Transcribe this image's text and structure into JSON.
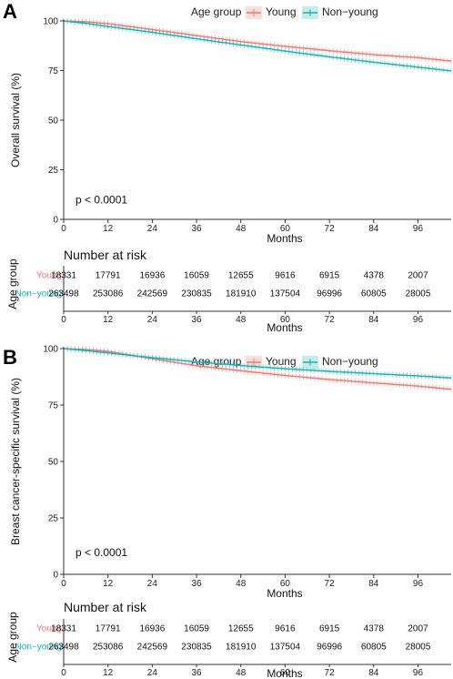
{
  "colors": {
    "young": "#F8766D",
    "nonyoung": "#17B3B7",
    "axis": "#333333"
  },
  "risk_table": {
    "title": "Number at risk",
    "ylabel": "Age group",
    "xlabel": "Months",
    "times": [
      "0",
      "12",
      "24",
      "36",
      "48",
      "60",
      "72",
      "84",
      "96"
    ],
    "rows": [
      {
        "label": "Young",
        "color": "#F8766D",
        "values": [
          "18331",
          "17791",
          "16936",
          "16059",
          "12655",
          "9616",
          "6915",
          "4378",
          "2007"
        ]
      },
      {
        "label": "Non−young",
        "color": "#17B3B7",
        "values": [
          "263498",
          "253086",
          "242569",
          "230835",
          "181910",
          "137504",
          "96996",
          "60805",
          "28005"
        ]
      }
    ]
  },
  "chart_data": [
    {
      "type": "line",
      "panel": "A",
      "title": "",
      "xlabel": "Months",
      "ylabel": "Overall survival (%)",
      "xlim": [
        0,
        105
      ],
      "ylim": [
        0,
        100
      ],
      "xticks": [
        "0",
        "12",
        "24",
        "36",
        "48",
        "60",
        "72",
        "84",
        "96"
      ],
      "yticks": [
        "0",
        "25",
        "50",
        "75",
        "100"
      ],
      "legend_title": "Age group",
      "legend_position": "top",
      "annotation": "p < 0.0001",
      "x": [
        0,
        6,
        12,
        24,
        36,
        48,
        60,
        72,
        84,
        96,
        105
      ],
      "series": [
        {
          "name": "Young",
          "color": "#F8766D",
          "values": [
            100,
            99.6,
            98.6,
            95.7,
            92.6,
            89.6,
            87.2,
            85.0,
            83.0,
            81.5,
            79.8
          ]
        },
        {
          "name": "Non−young",
          "color": "#17B3B7",
          "values": [
            100,
            98.8,
            97.2,
            94.3,
            91.0,
            87.9,
            84.8,
            81.9,
            79.2,
            76.7,
            74.8
          ]
        }
      ]
    },
    {
      "type": "line",
      "panel": "B",
      "title": "",
      "xlabel": "Months",
      "ylabel": "Breast cancer-specific survival (%)",
      "xlim": [
        0,
        105
      ],
      "ylim": [
        0,
        100
      ],
      "xticks": [
        "0",
        "12",
        "24",
        "36",
        "48",
        "60",
        "72",
        "84",
        "96"
      ],
      "yticks": [
        "0",
        "25",
        "50",
        "75",
        "100"
      ],
      "legend_title": "Age group",
      "legend_position": "top",
      "annotation": "p < 0.0001",
      "x": [
        0,
        6,
        12,
        24,
        36,
        48,
        60,
        72,
        84,
        96,
        105
      ],
      "series": [
        {
          "name": "Young",
          "color": "#F8766D",
          "values": [
            100,
            99.6,
            98.8,
            95.5,
            92.4,
            90.2,
            88.1,
            86.3,
            84.8,
            83.4,
            82.0
          ]
        },
        {
          "name": "Non−young",
          "color": "#17B3B7",
          "values": [
            100,
            99.1,
            98.1,
            96.0,
            94.1,
            92.5,
            91.1,
            89.9,
            88.9,
            87.9,
            87.0
          ]
        }
      ]
    }
  ]
}
